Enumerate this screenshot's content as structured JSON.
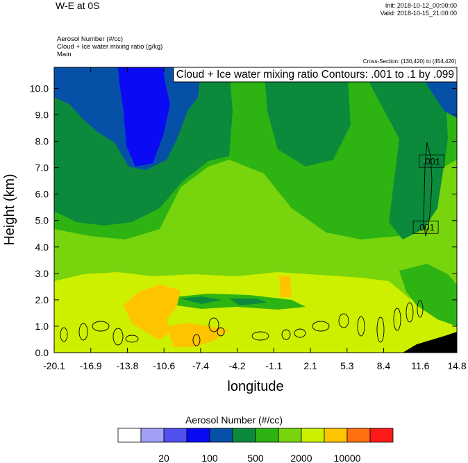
{
  "header": {
    "title": "W-E at 0S",
    "init": "Init: 2018-10-12_00:00:00",
    "valid": "Valid: 2018-10-15_21:00:00",
    "fields": [
      "Aerosol Number   (#/cc)",
      "Cloud + Ice water mixing ratio   (g/kg)",
      "Main"
    ],
    "cross_section": "Cross-Section: (130,420) to (454,420)"
  },
  "chart_data": {
    "type": "heatmap",
    "title": "W-E at 0S",
    "xlabel": "longitude",
    "ylabel": "Height (km)",
    "x_ticks": [
      "-20.1",
      "-16.9",
      "-13.8",
      "-10.6",
      "-7.4",
      "-4.2",
      "-1.1",
      "2.1",
      "5.3",
      "8.4",
      "11.6",
      "14.8"
    ],
    "y_ticks": [
      "0.0",
      "1.0",
      "2.0",
      "3.0",
      "4.0",
      "5.0",
      "6.0",
      "7.0",
      "8.0",
      "9.0",
      "10.0"
    ],
    "xlim": [
      -20.1,
      14.8
    ],
    "ylim": [
      0.0,
      10.8
    ],
    "contour_annotation": "Cloud + Ice water mixing ratio Contours: .001 to .1 by .099",
    "contour_labels": [
      {
        "text": ".001",
        "x": 12.6,
        "y": 7.25
      },
      {
        "text": ".001",
        "x": 12.1,
        "y": 4.75
      }
    ],
    "colorbar": {
      "title": "Aerosol Number  (#/cc)",
      "colors": [
        "#ffffff",
        "#a0a0f7",
        "#5050f0",
        "#0a0af5",
        "#0750a8",
        "#0b8a3c",
        "#2eb412",
        "#78d40c",
        "#ccf000",
        "#ffc400",
        "#ff7010",
        "#ff1a1a"
      ],
      "labels": [
        "20",
        "100",
        "500",
        "2000",
        "10000"
      ]
    },
    "grid": false
  }
}
